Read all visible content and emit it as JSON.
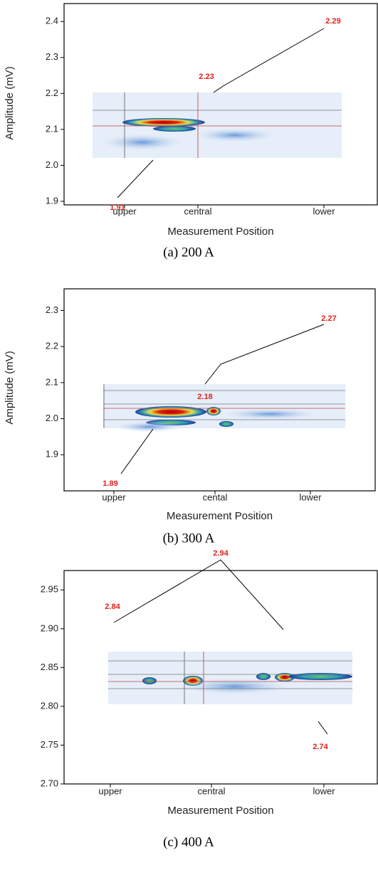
{
  "chart_data": [
    {
      "type": "heatmap",
      "ylabel": "Amplitude (mV)",
      "xlabel": "Measurement Position",
      "caption": "(a) 200 A",
      "categories": [
        "upper",
        "central",
        "lower"
      ],
      "ylim": [
        1.89,
        2.45
      ],
      "yticks": [
        1.9,
        {
          "value": 2,
          "label": "2.0"
        },
        2.1,
        2.2,
        2.3,
        2.4
      ],
      "annotations": [
        1.91,
        2.23,
        2.29
      ]
    },
    {
      "type": "heatmap",
      "ylabel": "Amplitude (mV)",
      "xlabel": "Measurement Position",
      "caption": "(b) 300 A",
      "categories": [
        "upper",
        "cental",
        "lower"
      ],
      "ylim": [
        1.8,
        2.36
      ],
      "yticks": [
        1.9,
        {
          "value": 2,
          "label": "2.0"
        },
        2.1,
        2.2,
        2.3
      ],
      "annotations": [
        1.89,
        2.18,
        2.27
      ]
    },
    {
      "type": "heatmap",
      "xlabel": "Measurement Position",
      "caption": "(c) 400 A",
      "categories": [
        "upper",
        "central",
        "lower"
      ],
      "ylim": [
        2.7,
        2.975
      ],
      "yticks": [
        {
          "value": 2.7,
          "label": "2.70"
        },
        2.75,
        {
          "value": 2.8,
          "label": "2.80"
        },
        2.85,
        {
          "value": 2.9,
          "label": "2.90"
        },
        2.95
      ],
      "annotations": [
        2.84,
        2.94,
        2.74
      ]
    }
  ]
}
